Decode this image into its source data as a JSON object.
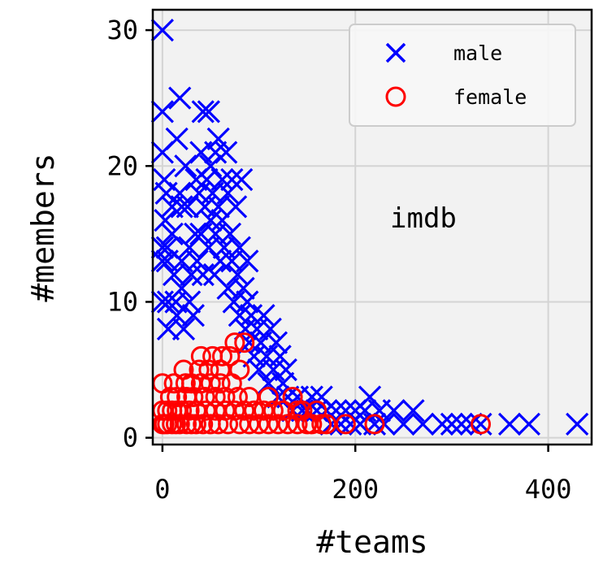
{
  "chart_data": {
    "type": "scatter",
    "title": "",
    "xlabel": "#teams",
    "ylabel": "#members",
    "xlim": [
      -10,
      445
    ],
    "ylim": [
      -0.5,
      31.5
    ],
    "xticks": [
      0,
      200,
      400
    ],
    "yticks": [
      0,
      10,
      20,
      30
    ],
    "grid": true,
    "legend": "top-right",
    "annotation": "imdb",
    "series": [
      {
        "name": "male",
        "marker": "x",
        "color": "#0000ff",
        "points": [
          [
            0,
            30
          ],
          [
            0,
            24
          ],
          [
            0,
            21
          ],
          [
            0,
            14
          ],
          [
            0,
            13
          ],
          [
            0,
            10
          ],
          [
            2,
            19
          ],
          [
            3,
            16
          ],
          [
            4,
            18
          ],
          [
            5,
            14
          ],
          [
            5,
            13
          ],
          [
            6,
            10
          ],
          [
            6,
            8
          ],
          [
            10,
            17
          ],
          [
            10,
            15
          ],
          [
            12,
            12
          ],
          [
            14,
            10
          ],
          [
            15,
            22
          ],
          [
            15,
            9
          ],
          [
            18,
            25
          ],
          [
            18,
            18
          ],
          [
            20,
            17
          ],
          [
            20,
            13
          ],
          [
            20,
            11
          ],
          [
            22,
            8
          ],
          [
            24,
            20
          ],
          [
            26,
            17
          ],
          [
            28,
            14
          ],
          [
            28,
            10
          ],
          [
            30,
            12
          ],
          [
            32,
            9
          ],
          [
            34,
            15
          ],
          [
            35,
            19
          ],
          [
            36,
            13
          ],
          [
            38,
            18
          ],
          [
            40,
            15
          ],
          [
            40,
            21
          ],
          [
            42,
            24
          ],
          [
            42,
            12
          ],
          [
            44,
            17
          ],
          [
            46,
            19
          ],
          [
            48,
            14
          ],
          [
            48,
            24
          ],
          [
            50,
            16
          ],
          [
            50,
            20
          ],
          [
            52,
            18
          ],
          [
            54,
            12
          ],
          [
            55,
            21
          ],
          [
            55,
            15
          ],
          [
            58,
            17
          ],
          [
            58,
            22
          ],
          [
            60,
            13
          ],
          [
            62,
            16
          ],
          [
            62,
            19
          ],
          [
            64,
            14
          ],
          [
            66,
            21
          ],
          [
            68,
            11
          ],
          [
            68,
            18
          ],
          [
            70,
            15
          ],
          [
            72,
            13
          ],
          [
            72,
            19
          ],
          [
            74,
            10
          ],
          [
            76,
            17
          ],
          [
            78,
            12
          ],
          [
            80,
            9
          ],
          [
            80,
            14
          ],
          [
            82,
            19
          ],
          [
            84,
            11
          ],
          [
            86,
            8
          ],
          [
            88,
            13
          ],
          [
            88,
            10
          ],
          [
            90,
            7
          ],
          [
            92,
            9
          ],
          [
            95,
            6
          ],
          [
            98,
            8
          ],
          [
            100,
            5
          ],
          [
            102,
            7
          ],
          [
            105,
            9
          ],
          [
            108,
            6
          ],
          [
            110,
            4
          ],
          [
            112,
            8
          ],
          [
            115,
            5
          ],
          [
            118,
            7
          ],
          [
            120,
            3
          ],
          [
            122,
            6
          ],
          [
            125,
            4
          ],
          [
            128,
            5
          ],
          [
            130,
            3
          ],
          [
            135,
            2
          ],
          [
            140,
            3
          ],
          [
            145,
            2
          ],
          [
            150,
            2
          ],
          [
            155,
            3
          ],
          [
            160,
            2
          ],
          [
            165,
            3
          ],
          [
            170,
            2
          ],
          [
            175,
            1
          ],
          [
            180,
            2
          ],
          [
            185,
            1
          ],
          [
            190,
            2
          ],
          [
            195,
            1
          ],
          [
            200,
            2
          ],
          [
            205,
            1
          ],
          [
            210,
            2
          ],
          [
            215,
            3
          ],
          [
            220,
            1
          ],
          [
            225,
            2
          ],
          [
            230,
            1
          ],
          [
            240,
            2
          ],
          [
            250,
            1
          ],
          [
            260,
            2
          ],
          [
            270,
            1
          ],
          [
            290,
            1
          ],
          [
            300,
            1
          ],
          [
            310,
            1
          ],
          [
            320,
            1
          ],
          [
            330,
            1
          ],
          [
            360,
            1
          ],
          [
            380,
            1
          ],
          [
            430,
            1
          ]
        ]
      },
      {
        "name": "female",
        "marker": "o",
        "color": "#ff0000",
        "points": [
          [
            0,
            4
          ],
          [
            0,
            2
          ],
          [
            0,
            1
          ],
          [
            2,
            1
          ],
          [
            5,
            2
          ],
          [
            5,
            1
          ],
          [
            8,
            3
          ],
          [
            10,
            1
          ],
          [
            10,
            2
          ],
          [
            12,
            4
          ],
          [
            14,
            1
          ],
          [
            15,
            3
          ],
          [
            15,
            2
          ],
          [
            18,
            1
          ],
          [
            20,
            2
          ],
          [
            22,
            5
          ],
          [
            24,
            4
          ],
          [
            25,
            1
          ],
          [
            25,
            3
          ],
          [
            28,
            2
          ],
          [
            30,
            1
          ],
          [
            30,
            4
          ],
          [
            32,
            3
          ],
          [
            35,
            2
          ],
          [
            35,
            1
          ],
          [
            38,
            5
          ],
          [
            40,
            4
          ],
          [
            40,
            6
          ],
          [
            42,
            1
          ],
          [
            44,
            3
          ],
          [
            45,
            2
          ],
          [
            48,
            5
          ],
          [
            50,
            1
          ],
          [
            50,
            4
          ],
          [
            52,
            6
          ],
          [
            55,
            3
          ],
          [
            55,
            2
          ],
          [
            58,
            1
          ],
          [
            60,
            5
          ],
          [
            60,
            4
          ],
          [
            62,
            6
          ],
          [
            65,
            2
          ],
          [
            65,
            3
          ],
          [
            68,
            1
          ],
          [
            70,
            6
          ],
          [
            72,
            4
          ],
          [
            75,
            7
          ],
          [
            75,
            2
          ],
          [
            78,
            3
          ],
          [
            80,
            1
          ],
          [
            80,
            5
          ],
          [
            85,
            7
          ],
          [
            85,
            2
          ],
          [
            90,
            3
          ],
          [
            90,
            1
          ],
          [
            95,
            2
          ],
          [
            100,
            1
          ],
          [
            105,
            2
          ],
          [
            110,
            3
          ],
          [
            110,
            1
          ],
          [
            115,
            2
          ],
          [
            120,
            1
          ],
          [
            125,
            2
          ],
          [
            130,
            1
          ],
          [
            135,
            3
          ],
          [
            140,
            2
          ],
          [
            140,
            1
          ],
          [
            145,
            2
          ],
          [
            150,
            1
          ],
          [
            155,
            1
          ],
          [
            160,
            2
          ],
          [
            165,
            1
          ],
          [
            170,
            1
          ],
          [
            190,
            1
          ],
          [
            220,
            1
          ],
          [
            330,
            1
          ]
        ]
      }
    ]
  }
}
